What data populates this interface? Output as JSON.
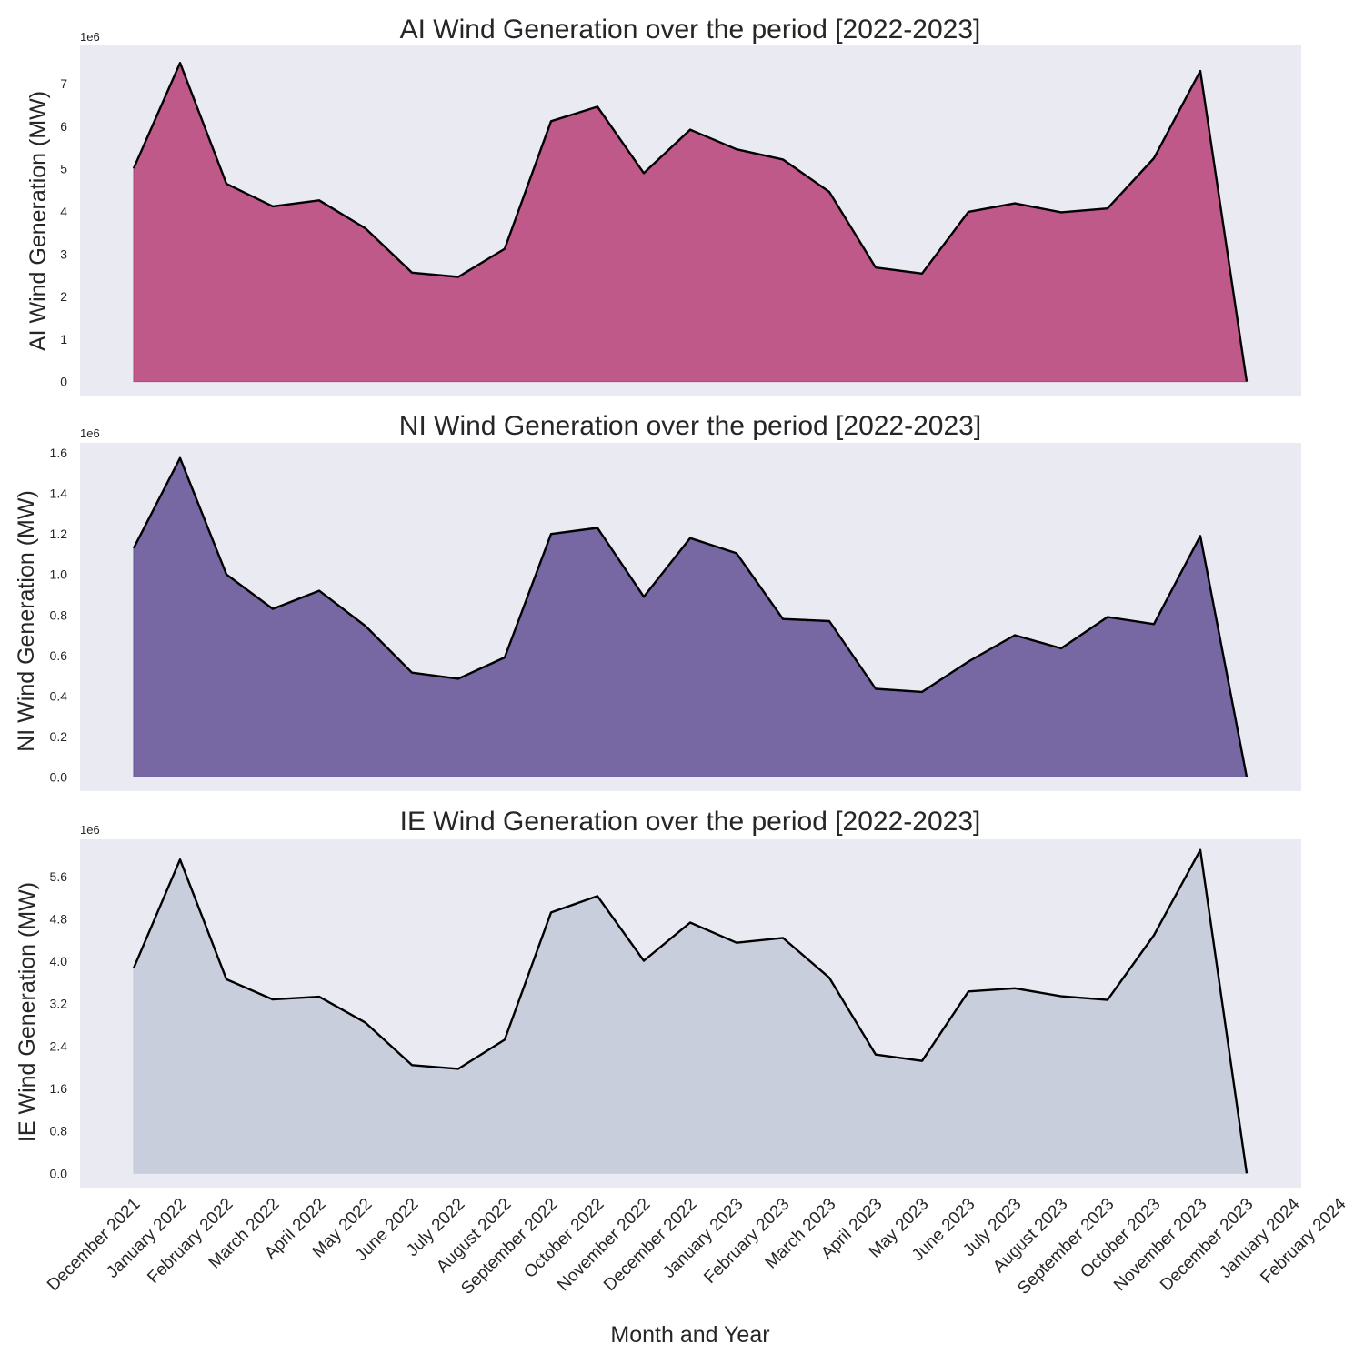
{
  "chart_data": [
    {
      "type": "area",
      "title": "AI Wind Generation over the period [2022-2023]",
      "ylabel": "AI Wind Generation (MW)",
      "xlabel": "",
      "offset_label": "1e6",
      "ylim": [
        -0.35,
        7.9
      ],
      "yticks": [
        0,
        1,
        2,
        3,
        4,
        5,
        6,
        7
      ],
      "ytick_labels": [
        "0",
        "1",
        "2",
        "3",
        "4",
        "5",
        "6",
        "7"
      ],
      "show_xticks": false,
      "grid": false,
      "fill_color": "#b7447a",
      "line_color": "#000000",
      "x": [
        "December 2021",
        "January 2022",
        "February 2022",
        "March 2022",
        "April 2022",
        "May 2022",
        "June 2022",
        "July 2022",
        "August 2022",
        "September 2022",
        "October 2022",
        "November 2022",
        "December 2022",
        "January 2023",
        "February 2023",
        "March 2023",
        "April 2023",
        "May 2023",
        "June 2023",
        "July 2023",
        "August 2023",
        "September 2023",
        "October 2023",
        "November 2023",
        "December 2023"
      ],
      "series": [
        {
          "values": [
            5.01,
            7.49,
            4.65,
            4.12,
            4.26,
            3.6,
            2.56,
            2.46,
            3.12,
            6.12,
            6.46,
            4.9,
            5.92,
            5.46,
            5.22,
            4.46,
            2.68,
            2.54,
            3.99,
            4.19,
            3.98,
            4.07,
            5.25,
            7.3,
            0.0
          ]
        }
      ]
    },
    {
      "type": "area",
      "title": "NI Wind Generation over the period [2022-2023]",
      "ylabel": "NI Wind Generation (MW)",
      "xlabel": "",
      "offset_label": "1e6",
      "ylim": [
        -0.07,
        1.65
      ],
      "yticks": [
        0.0,
        0.2,
        0.4,
        0.6,
        0.8,
        1.0,
        1.2,
        1.4,
        1.6
      ],
      "ytick_labels": [
        "0.0",
        "0.2",
        "0.4",
        "0.6",
        "0.8",
        "1.0",
        "1.2",
        "1.4",
        "1.6"
      ],
      "show_xticks": false,
      "grid": false,
      "fill_color": "#665497",
      "line_color": "#000000",
      "x": [
        "December 2021",
        "January 2022",
        "February 2022",
        "March 2022",
        "April 2022",
        "May 2022",
        "June 2022",
        "July 2022",
        "August 2022",
        "September 2022",
        "October 2022",
        "November 2022",
        "December 2022",
        "January 2023",
        "February 2023",
        "March 2023",
        "April 2023",
        "May 2023",
        "June 2023",
        "July 2023",
        "August 2023",
        "September 2023",
        "October 2023",
        "November 2023",
        "December 2023"
      ],
      "series": [
        {
          "values": [
            1.13,
            1.575,
            1.0,
            0.83,
            0.92,
            0.745,
            0.515,
            0.485,
            0.59,
            1.2,
            1.23,
            0.89,
            1.18,
            1.105,
            0.78,
            0.77,
            0.435,
            0.42,
            0.57,
            0.7,
            0.635,
            0.79,
            0.755,
            1.19,
            0.0
          ]
        }
      ]
    },
    {
      "type": "area",
      "title": "IE Wind Generation over the period [2022-2023]",
      "ylabel": "IE Wind Generation (MW)",
      "xlabel": "Month and Year",
      "offset_label": "1e6",
      "ylim": [
        -0.27,
        6.3
      ],
      "yticks": [
        0.0,
        0.8,
        1.6,
        2.4,
        3.2,
        4.0,
        4.8,
        5.6
      ],
      "ytick_labels": [
        "0.0",
        "0.8",
        "1.6",
        "2.4",
        "3.2",
        "4.0",
        "4.8",
        "5.6"
      ],
      "show_xticks": true,
      "grid": false,
      "fill_color": "#c4cad8",
      "line_color": "#000000",
      "x": [
        "December 2021",
        "January 2022",
        "February 2022",
        "March 2022",
        "April 2022",
        "May 2022",
        "June 2022",
        "July 2022",
        "August 2022",
        "September 2022",
        "October 2022",
        "November 2022",
        "December 2022",
        "January 2023",
        "February 2023",
        "March 2023",
        "April 2023",
        "May 2023",
        "June 2023",
        "July 2023",
        "August 2023",
        "September 2023",
        "October 2023",
        "November 2023",
        "December 2023"
      ],
      "series": [
        {
          "values": [
            3.87,
            5.92,
            3.66,
            3.28,
            3.33,
            2.84,
            2.04,
            1.97,
            2.52,
            4.92,
            5.23,
            4.01,
            4.73,
            4.35,
            4.44,
            3.69,
            2.24,
            2.12,
            3.43,
            3.49,
            3.34,
            3.27,
            4.49,
            6.1,
            0.0
          ]
        }
      ]
    }
  ],
  "x_tick_labels": [
    "December 2021",
    "January 2022",
    "February 2022",
    "March 2022",
    "April 2022",
    "May 2022",
    "June 2022",
    "July 2022",
    "August 2022",
    "September 2022",
    "October 2022",
    "November 2022",
    "December 2022",
    "January 2023",
    "February 2023",
    "March 2023",
    "April 2023",
    "May 2023",
    "June 2023",
    "July 2023",
    "August 2023",
    "September 2023",
    "October 2023",
    "November 2023",
    "December 2023",
    "January 2024",
    "February 2024"
  ]
}
